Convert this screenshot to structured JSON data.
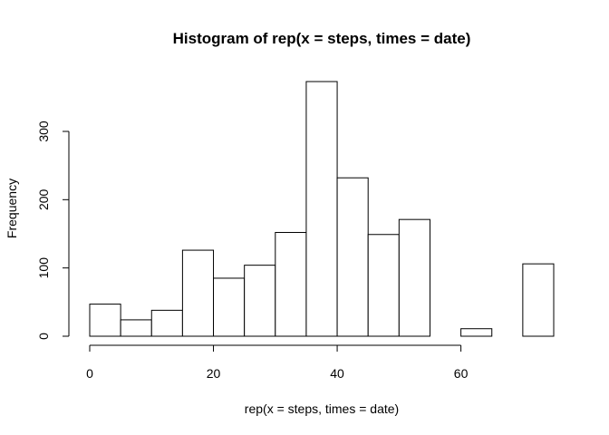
{
  "chart_data": {
    "type": "bar",
    "title": "Histogram of rep(x = steps, times = date)",
    "xlabel": "rep(x = steps, times = date)",
    "ylabel": "Frequency",
    "bin_edges": [
      0,
      5,
      10,
      15,
      20,
      25,
      30,
      35,
      40,
      45,
      50,
      55,
      60,
      65,
      70,
      75
    ],
    "values": [
      47,
      24,
      38,
      126,
      85,
      104,
      152,
      373,
      232,
      149,
      171,
      0,
      11,
      0,
      106
    ],
    "xlim": [
      0,
      75
    ],
    "ylim": [
      0,
      373
    ],
    "x_ticks": [
      0,
      20,
      40,
      60
    ],
    "y_ticks": [
      0,
      100,
      200,
      300
    ],
    "grid": false,
    "bar_fill": "#ffffff",
    "bar_stroke": "#000000"
  }
}
